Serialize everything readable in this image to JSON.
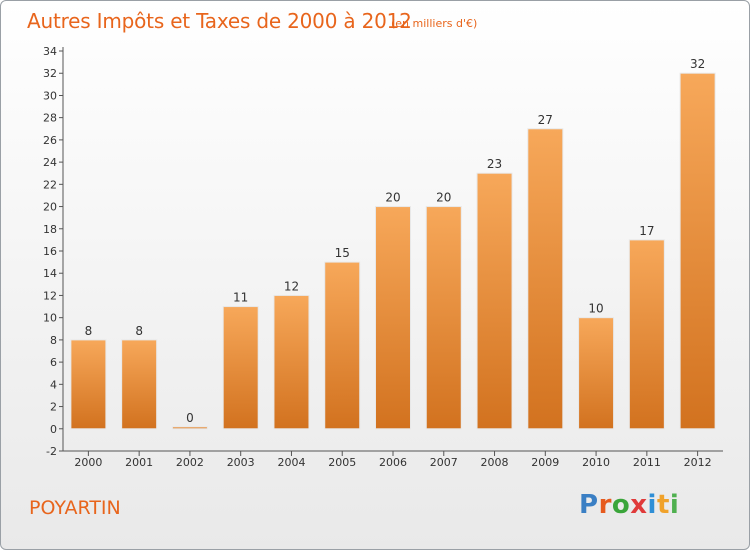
{
  "header": {
    "title": "Autres Impôts et Taxes de 2000 à 2012",
    "subtitle": "(en milliers d'€)"
  },
  "footer": {
    "commune": "POYARTIN",
    "logo_letters": [
      "P",
      "r",
      "o",
      "x",
      "i",
      "t",
      "i"
    ]
  },
  "colors": {
    "accent": "#e8651c",
    "bar_light": "#f7a85a",
    "bar_dark": "#d2721f",
    "logo": [
      "#3a7fc4",
      "#e65a1e",
      "#3aa53a",
      "#e03a3a",
      "#2f8fd6",
      "#f0a22a",
      "#4fb04f"
    ]
  },
  "chart_data": {
    "type": "bar",
    "categories": [
      "2000",
      "2001",
      "2002",
      "2003",
      "2004",
      "2005",
      "2006",
      "2007",
      "2008",
      "2009",
      "2010",
      "2011",
      "2012"
    ],
    "values": [
      8,
      8,
      0,
      11,
      12,
      15,
      20,
      20,
      23,
      27,
      10,
      17,
      32
    ],
    "data_labels": [
      "8",
      "8",
      "0",
      "11",
      "12",
      "15",
      "20",
      "20",
      "23",
      "27",
      "10",
      "17",
      "32"
    ],
    "y_ticks": [
      "-2",
      "0",
      "2",
      "4",
      "6",
      "8",
      "10",
      "12",
      "14",
      "16",
      "18",
      "20",
      "22",
      "24",
      "26",
      "28",
      "30",
      "32",
      "34"
    ],
    "ylim": [
      -2,
      34
    ],
    "grid": false,
    "legend": "none"
  }
}
